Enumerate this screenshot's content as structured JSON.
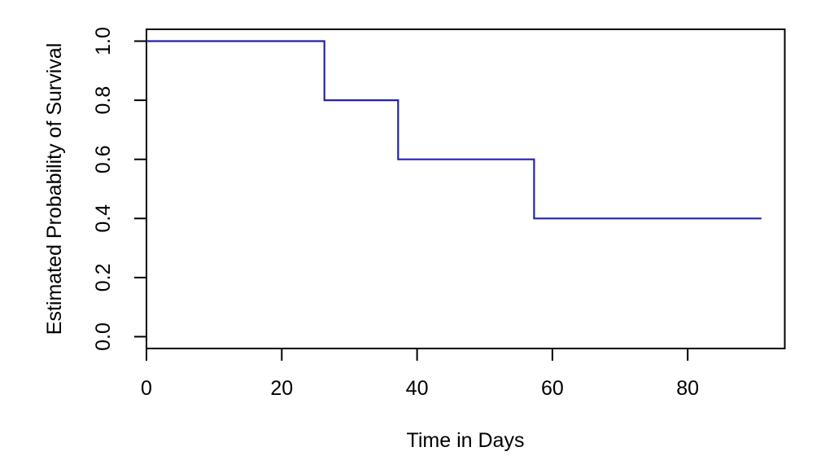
{
  "page": {
    "background": "#ffffff",
    "title": ""
  },
  "chart_data": {
    "type": "line",
    "subtype": "step-function (Kaplan-Meier style survival curve)",
    "title": "",
    "xlabel": "Time in Days",
    "ylabel": "Estimated Probability of Survival",
    "x_ticks": [
      {
        "value": 0,
        "label": "0"
      },
      {
        "value": 20,
        "label": "20"
      },
      {
        "value": 40,
        "label": "40"
      },
      {
        "value": 60,
        "label": "60"
      },
      {
        "value": 80,
        "label": "80"
      }
    ],
    "y_ticks": [
      {
        "value": 0.0,
        "label": "0.0"
      },
      {
        "value": 0.2,
        "label": "0.2"
      },
      {
        "value": 0.4,
        "label": "0.4"
      },
      {
        "value": 0.6,
        "label": "0.6"
      },
      {
        "value": 0.8,
        "label": "0.8"
      },
      {
        "value": 1.0,
        "label": "1.0"
      }
    ],
    "xlim": [
      0,
      94.35
    ],
    "ylim": [
      -0.04,
      1.04
    ],
    "grid": false,
    "legend_position": "none",
    "box_around_plot": true,
    "axis_color": "#000000",
    "text_color": "#000000",
    "series": [
      {
        "name": "estimated-survival-probability",
        "color": "#2222b2",
        "line_width": 2.2,
        "survival_levels": [
          1.0,
          0.8,
          0.6,
          0.4
        ],
        "event_times_days": [
          26.3,
          37.2,
          57.3
        ],
        "follow_up_end_days": 90.9,
        "step_points": [
          [
            0,
            1.0
          ],
          [
            26.3,
            1.0
          ],
          [
            26.3,
            0.8
          ],
          [
            37.2,
            0.8
          ],
          [
            37.2,
            0.6
          ],
          [
            57.3,
            0.6
          ],
          [
            57.3,
            0.4
          ],
          [
            90.9,
            0.4
          ]
        ]
      }
    ]
  }
}
